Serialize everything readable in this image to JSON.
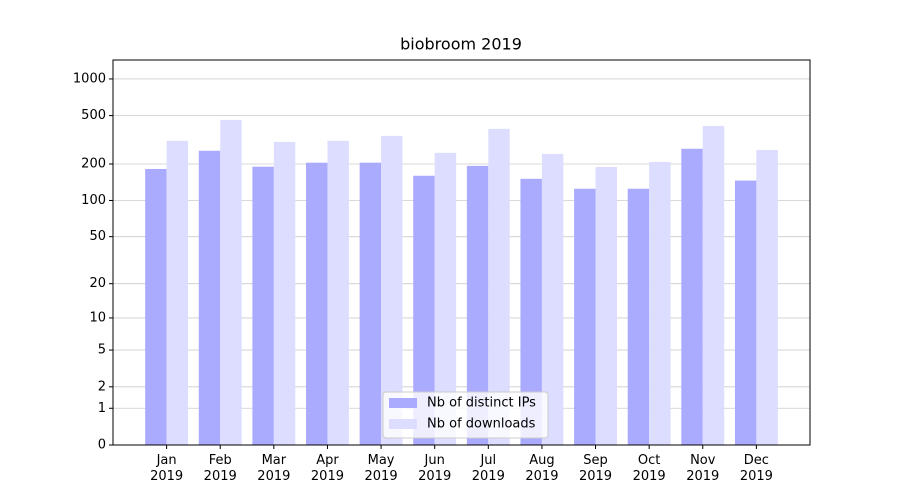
{
  "chart_data": {
    "type": "bar",
    "title": "biobroom 2019",
    "categories": [
      "Jan\n2019",
      "Feb\n2019",
      "Mar\n2019",
      "Apr\n2019",
      "May\n2019",
      "Jun\n2019",
      "Jul\n2019",
      "Aug\n2019",
      "Sep\n2019",
      "Oct\n2019",
      "Nov\n2019",
      "Dec\n2019"
    ],
    "series": [
      {
        "name": "Nb of distinct IPs",
        "color": "#aaaaff",
        "values": [
          182,
          257,
          190,
          205,
          205,
          160,
          193,
          151,
          125,
          125,
          267,
          146
        ]
      },
      {
        "name": "Nb of downloads",
        "color": "#ddddff",
        "values": [
          310,
          461,
          304,
          310,
          341,
          247,
          389,
          242,
          189,
          208,
          411,
          261
        ]
      }
    ],
    "yscale": "log1p",
    "ylim": [
      0,
      1430
    ],
    "yticks": [
      0,
      1,
      2,
      5,
      10,
      20,
      50,
      100,
      200,
      500,
      1000
    ],
    "grid": true,
    "legend": "lower center"
  }
}
